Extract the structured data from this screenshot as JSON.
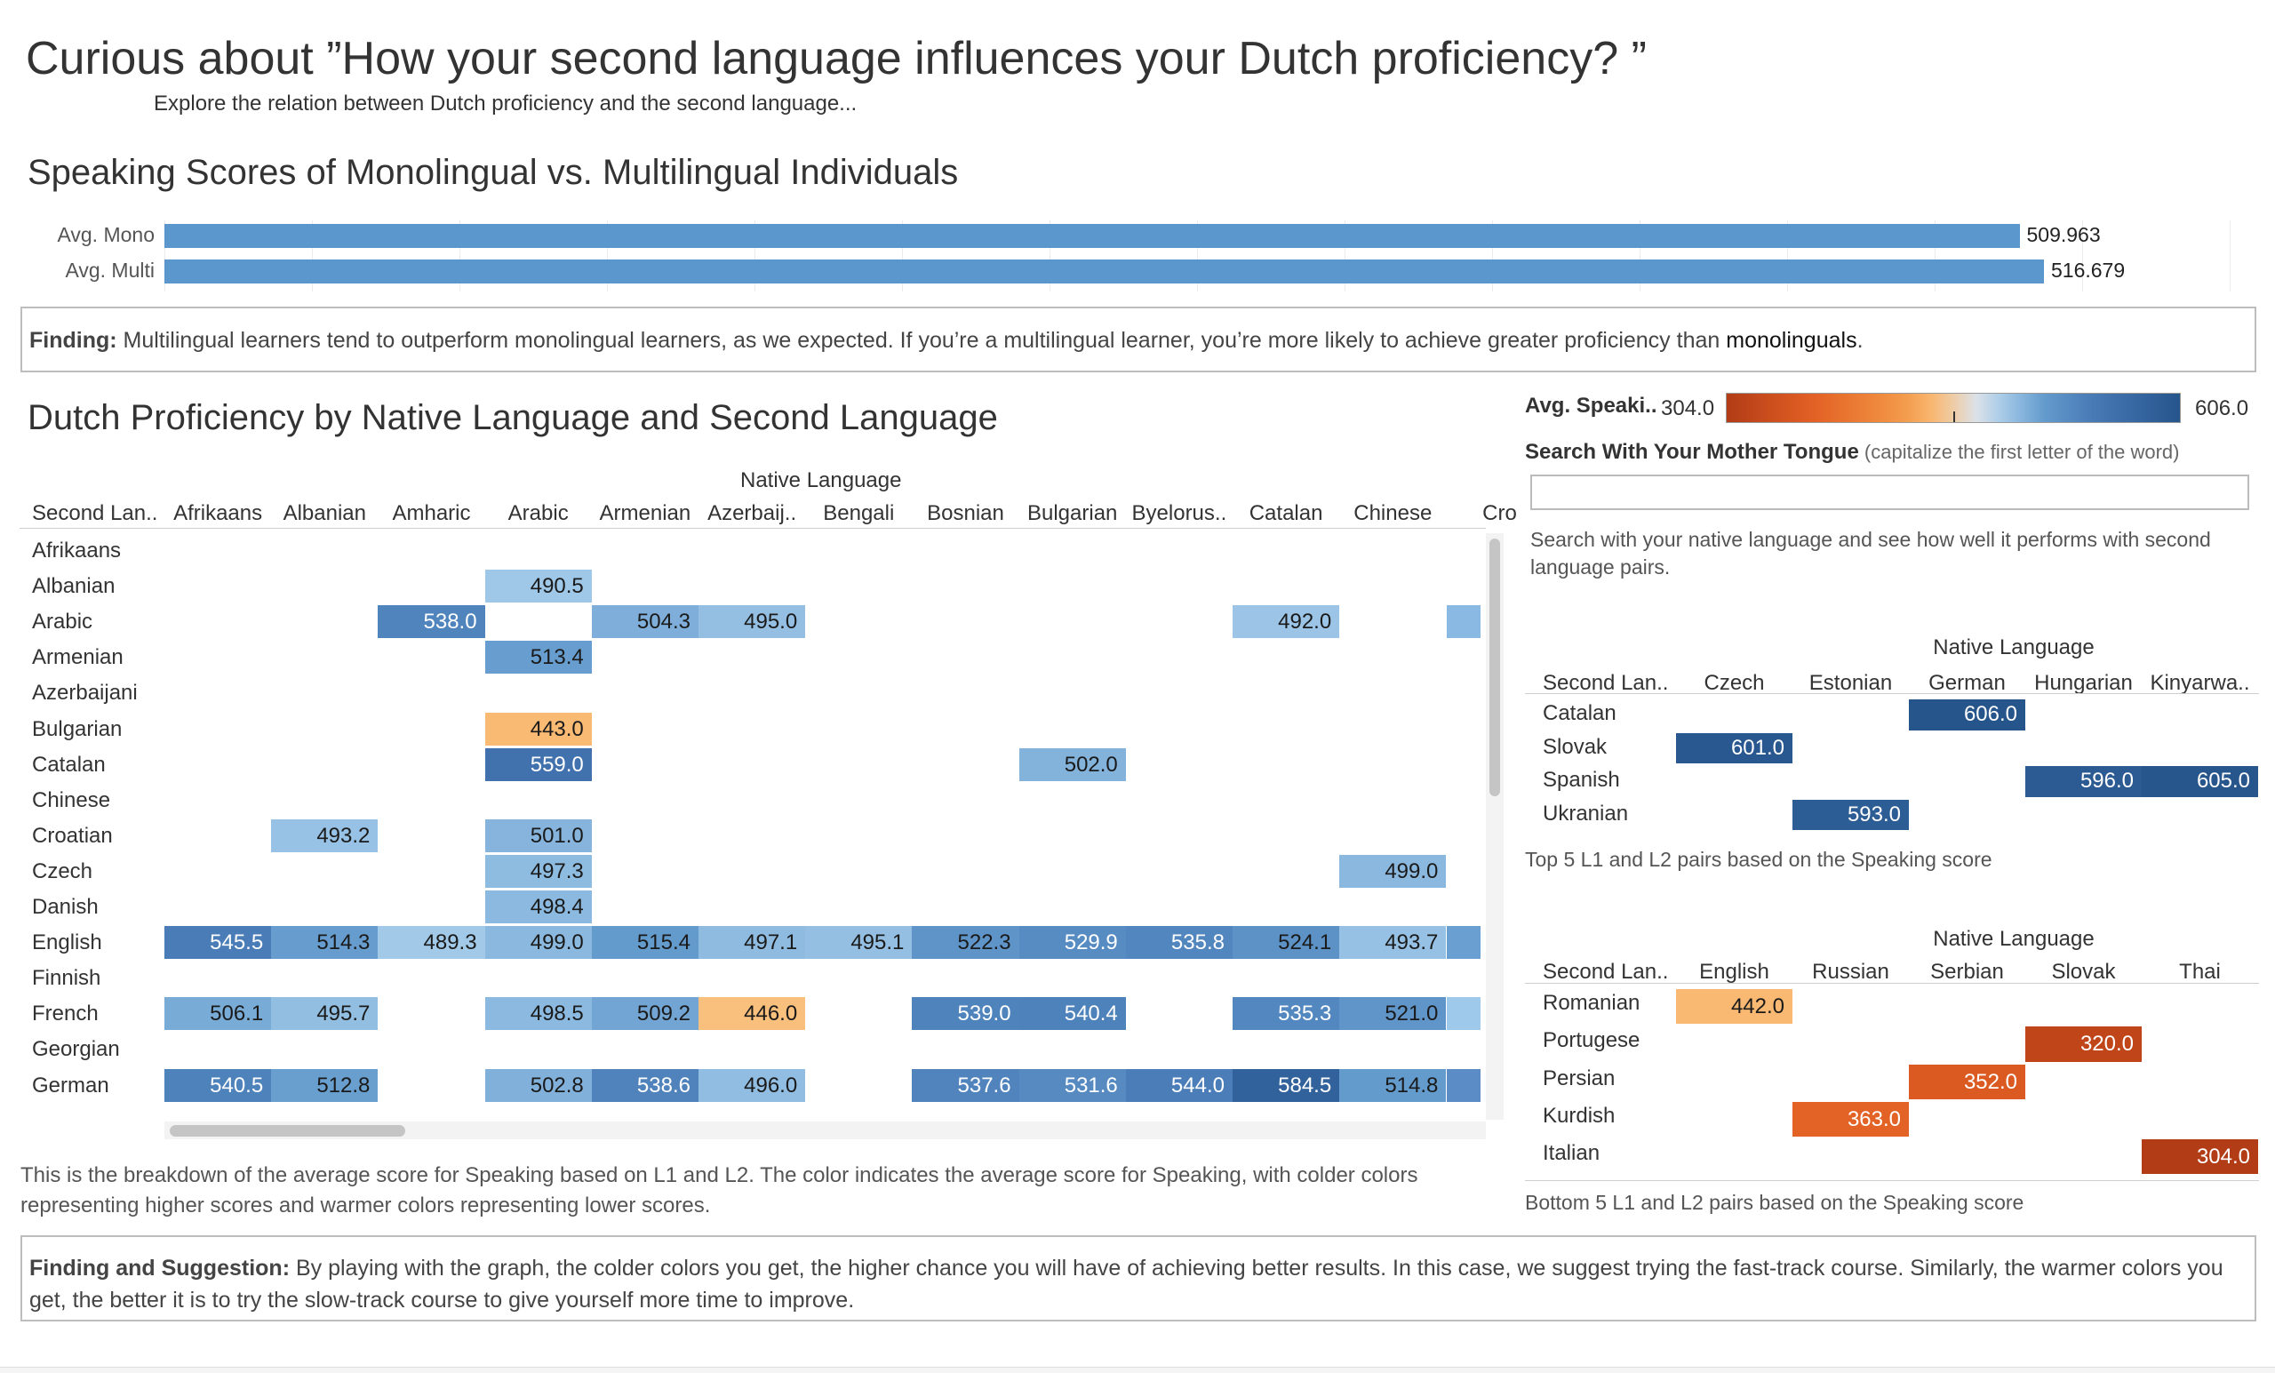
{
  "header": {
    "title": "Curious about ”How your second language influences your Dutch proficiency? ”",
    "subtitle": "Explore the relation between Dutch proficiency and the second language..."
  },
  "comparison": {
    "title": "Speaking Scores of Monolingual vs. Multilingual Individuals",
    "chart_data": {
      "type": "bar",
      "orientation": "horizontal",
      "categories": [
        "Avg. Mono",
        "Avg. Multi"
      ],
      "values": [
        509.963,
        516.679
      ],
      "labels": [
        "509.963",
        "516.679"
      ],
      "color": "#5b97cd"
    },
    "finding_label": "Finding:",
    "finding_text": " Multilingual learners tend to outperform monolingual learners, as we expected. If you’re a multilingual learner, you’re more likely to achieve greater proficiency than ",
    "finding_tail": "monolinguals",
    "finding_end": "."
  },
  "heatmap": {
    "title": "Dutch Proficiency by Native Language and Second Language",
    "col_group_label": "Native Language",
    "row_header": "Second Lan..",
    "columns": [
      "Afrikaans",
      "Albanian",
      "Amharic",
      "Arabic",
      "Armenian",
      "Azerbaij..",
      "Bengali",
      "Bosnian",
      "Bulgarian",
      "Byelorus..",
      "Catalan",
      "Chinese",
      "Cro"
    ],
    "rows": [
      "Afrikaans",
      "Albanian",
      "Arabic",
      "Armenian",
      "Azerbaijani",
      "Bulgarian",
      "Catalan",
      "Chinese",
      "Croatian",
      "Czech",
      "Danish",
      "English",
      "Finnish",
      "French",
      "Georgian",
      "German"
    ],
    "chart_data": {
      "type": "heatmap",
      "x_label": "Native Language",
      "y_label": "Second Lan..",
      "color_range": [
        304.0,
        606.0
      ],
      "cells": [
        {
          "row": "Albanian",
          "col": "Arabic",
          "value": 490.5
        },
        {
          "row": "Arabic",
          "col": "Amharic",
          "value": 538.0
        },
        {
          "row": "Arabic",
          "col": "Armenian",
          "value": 504.3
        },
        {
          "row": "Arabic",
          "col": "Azerbaij..",
          "value": 495.0
        },
        {
          "row": "Arabic",
          "col": "Catalan",
          "value": 492.0
        },
        {
          "row": "Armenian",
          "col": "Arabic",
          "value": 513.4
        },
        {
          "row": "Bulgarian",
          "col": "Arabic",
          "value": 443.0
        },
        {
          "row": "Catalan",
          "col": "Arabic",
          "value": 559.0
        },
        {
          "row": "Catalan",
          "col": "Bulgarian",
          "value": 502.0
        },
        {
          "row": "Croatian",
          "col": "Albanian",
          "value": 493.2
        },
        {
          "row": "Croatian",
          "col": "Arabic",
          "value": 501.0
        },
        {
          "row": "Czech",
          "col": "Arabic",
          "value": 497.3
        },
        {
          "row": "Czech",
          "col": "Chinese",
          "value": 499.0
        },
        {
          "row": "Danish",
          "col": "Arabic",
          "value": 498.4
        },
        {
          "row": "English",
          "col": "Afrikaans",
          "value": 545.5
        },
        {
          "row": "English",
          "col": "Albanian",
          "value": 514.3
        },
        {
          "row": "English",
          "col": "Amharic",
          "value": 489.3
        },
        {
          "row": "English",
          "col": "Arabic",
          "value": 499.0
        },
        {
          "row": "English",
          "col": "Armenian",
          "value": 515.4
        },
        {
          "row": "English",
          "col": "Azerbaij..",
          "value": 497.1
        },
        {
          "row": "English",
          "col": "Bengali",
          "value": 495.1
        },
        {
          "row": "English",
          "col": "Bosnian",
          "value": 522.3
        },
        {
          "row": "English",
          "col": "Bulgarian",
          "value": 529.9
        },
        {
          "row": "English",
          "col": "Byelorus..",
          "value": 535.8
        },
        {
          "row": "English",
          "col": "Catalan",
          "value": 524.1
        },
        {
          "row": "English",
          "col": "Chinese",
          "value": 493.7
        },
        {
          "row": "French",
          "col": "Afrikaans",
          "value": 506.1
        },
        {
          "row": "French",
          "col": "Albanian",
          "value": 495.7
        },
        {
          "row": "French",
          "col": "Arabic",
          "value": 498.5
        },
        {
          "row": "French",
          "col": "Armenian",
          "value": 509.2
        },
        {
          "row": "French",
          "col": "Azerbaij..",
          "value": 446.0
        },
        {
          "row": "French",
          "col": "Bosnian",
          "value": 539.0
        },
        {
          "row": "French",
          "col": "Bulgarian",
          "value": 540.4
        },
        {
          "row": "French",
          "col": "Catalan",
          "value": 535.3
        },
        {
          "row": "French",
          "col": "Chinese",
          "value": 521.0
        },
        {
          "row": "German",
          "col": "Afrikaans",
          "value": 540.5
        },
        {
          "row": "German",
          "col": "Albanian",
          "value": 512.8
        },
        {
          "row": "German",
          "col": "Arabic",
          "value": 502.8
        },
        {
          "row": "German",
          "col": "Armenian",
          "value": 538.6
        },
        {
          "row": "German",
          "col": "Azerbaij..",
          "value": 496.0
        },
        {
          "row": "German",
          "col": "Bosnian",
          "value": 537.6
        },
        {
          "row": "German",
          "col": "Bulgarian",
          "value": 531.6
        },
        {
          "row": "German",
          "col": "Byelorus..",
          "value": 544.0
        },
        {
          "row": "German",
          "col": "Catalan",
          "value": 584.5
        },
        {
          "row": "German",
          "col": "Chinese",
          "value": 514.8
        }
      ]
    },
    "note": "This is the breakdown of the average score for Speaking based on L1 and L2. The color indicates the average score for Speaking, with colder colors representing higher scores and warmer colors representing lower scores."
  },
  "legend": {
    "label": "Avg. Speaki..",
    "min_label": "304.0",
    "max_label": "606.0",
    "colors": {
      "low": "#b5431c",
      "mid_low": "#f39a3b",
      "mid": "#f7d7a8",
      "mid_high": "#9fc4e4",
      "high": "#2a5d8f"
    }
  },
  "search": {
    "label": "Search With Your Mother Tongue",
    "hint": " (capitalize the first letter of the word)",
    "value": "",
    "help": "Search with your native language and see how well it performs with second language pairs."
  },
  "top5": {
    "col_group_label": "Native Language",
    "row_header": "Second Lan..",
    "columns": [
      "Czech",
      "Estonian",
      "German",
      "Hungarian",
      "Kinyarwa.."
    ],
    "rows": [
      "Catalan",
      "Slovak",
      "Spanish",
      "Ukranian"
    ],
    "chart_data": {
      "type": "heatmap",
      "cells": [
        {
          "row": "Catalan",
          "col": "German",
          "value": 606.0
        },
        {
          "row": "Slovak",
          "col": "Czech",
          "value": 601.0
        },
        {
          "row": "Spanish",
          "col": "Hungarian",
          "value": 596.0
        },
        {
          "row": "Spanish",
          "col": "Kinyarwa..",
          "value": 605.0
        },
        {
          "row": "Ukranian",
          "col": "Estonian",
          "value": 593.0
        }
      ]
    },
    "caption": "Top 5 L1 and L2 pairs based on the Speaking score"
  },
  "bottom5": {
    "col_group_label": "Native Language",
    "row_header": "Second Lan..",
    "columns": [
      "English",
      "Russian",
      "Serbian",
      "Slovak",
      "Thai"
    ],
    "rows": [
      "Romanian",
      "Portugese",
      "Persian",
      "Kurdish",
      "Italian"
    ],
    "chart_data": {
      "type": "heatmap",
      "cells": [
        {
          "row": "Romanian",
          "col": "English",
          "value": 442.0
        },
        {
          "row": "Portugese",
          "col": "Slovak",
          "value": 320.0
        },
        {
          "row": "Persian",
          "col": "Serbian",
          "value": 352.0
        },
        {
          "row": "Kurdish",
          "col": "Russian",
          "value": 363.0
        },
        {
          "row": "Italian",
          "col": "Thai",
          "value": 304.0
        }
      ]
    },
    "caption": "Bottom 5 L1 and L2 pairs based on the Speaking score"
  },
  "suggestion": {
    "label": "Finding and Suggestion:",
    "text": " By playing with the graph, the colder colors you get, the higher chance you will have of achieving better results. In this case, we suggest trying the fast-track course. Similarly, the warmer colors you get, the better it is to try the slow-track course to give yourself more time to improve."
  }
}
